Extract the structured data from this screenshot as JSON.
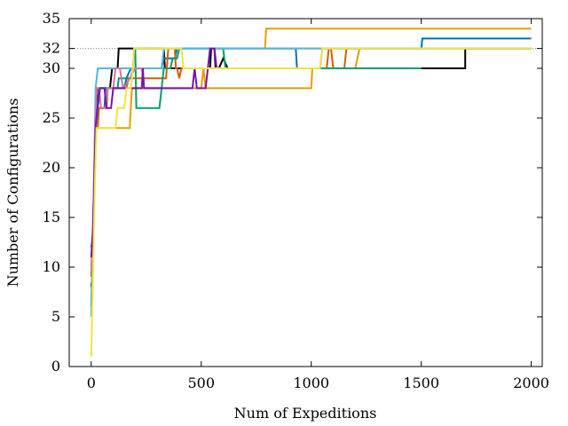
{
  "chart_data": {
    "type": "line",
    "title": "",
    "xlabel": "Num of Expeditions",
    "ylabel": "Number of Configurations",
    "xlim": [
      -100,
      2050
    ],
    "ylim": [
      0,
      35
    ],
    "x_ticks": [
      0,
      500,
      1000,
      1500,
      2000
    ],
    "y_ticks": [
      0,
      5,
      10,
      15,
      20,
      25,
      30,
      32,
      35
    ],
    "reference_lines": [
      {
        "axis": "y",
        "value": 32,
        "style": "dotted",
        "color": "#888888"
      }
    ],
    "grid": false,
    "legend": "none",
    "series": [
      {
        "color": "#000000",
        "points": [
          [
            0,
            8
          ],
          [
            5,
            9
          ],
          [
            8,
            10
          ],
          [
            10,
            14
          ],
          [
            12,
            17
          ],
          [
            15,
            21
          ],
          [
            18,
            23
          ],
          [
            25,
            26
          ],
          [
            28,
            28
          ],
          [
            40,
            28
          ],
          [
            60,
            28
          ],
          [
            85,
            28
          ],
          [
            95,
            30
          ],
          [
            120,
            30
          ],
          [
            125,
            32
          ],
          [
            330,
            32
          ],
          [
            335,
            30
          ],
          [
            380,
            30
          ],
          [
            540,
            30
          ],
          [
            545,
            32
          ],
          [
            560,
            32
          ],
          [
            565,
            30
          ],
          [
            580,
            30
          ],
          [
            600,
            31
          ],
          [
            620,
            30
          ],
          [
            1200,
            30
          ],
          [
            1700,
            30
          ],
          [
            1700,
            32
          ],
          [
            2000,
            32
          ]
        ]
      },
      {
        "color": "#0072B2",
        "points": [
          [
            0,
            12
          ],
          [
            8,
            13
          ],
          [
            12,
            18
          ],
          [
            16,
            22
          ],
          [
            20,
            25
          ],
          [
            30,
            26
          ],
          [
            45,
            26
          ],
          [
            60,
            26
          ],
          [
            65,
            28
          ],
          [
            150,
            28
          ],
          [
            160,
            29
          ],
          [
            180,
            30
          ],
          [
            320,
            30
          ],
          [
            330,
            31
          ],
          [
            380,
            31
          ],
          [
            390,
            32
          ],
          [
            930,
            32
          ],
          [
            935,
            30
          ],
          [
            1040,
            30
          ],
          [
            1050,
            32
          ],
          [
            1500,
            32
          ],
          [
            1505,
            33
          ],
          [
            2000,
            33
          ]
        ]
      },
      {
        "color": "#D55E00",
        "points": [
          [
            0,
            9
          ],
          [
            6,
            12
          ],
          [
            10,
            16
          ],
          [
            14,
            20
          ],
          [
            22,
            24
          ],
          [
            30,
            24
          ],
          [
            35,
            26
          ],
          [
            70,
            26
          ],
          [
            75,
            28
          ],
          [
            160,
            28
          ],
          [
            170,
            29
          ],
          [
            340,
            29
          ],
          [
            350,
            32
          ],
          [
            380,
            32
          ],
          [
            385,
            30
          ],
          [
            390,
            30
          ],
          [
            400,
            29
          ],
          [
            410,
            30
          ],
          [
            450,
            30
          ],
          [
            1060,
            30
          ],
          [
            1070,
            30
          ],
          [
            1080,
            32
          ],
          [
            1090,
            32
          ],
          [
            1100,
            30
          ],
          [
            1150,
            30
          ],
          [
            1160,
            32
          ],
          [
            2000,
            32
          ]
        ]
      },
      {
        "color": "#E69F00",
        "points": [
          [
            0,
            7
          ],
          [
            4,
            9
          ],
          [
            8,
            12
          ],
          [
            12,
            16
          ],
          [
            16,
            20
          ],
          [
            20,
            24
          ],
          [
            60,
            24
          ],
          [
            80,
            24
          ],
          [
            100,
            24
          ],
          [
            175,
            24
          ],
          [
            180,
            26
          ],
          [
            185,
            28
          ],
          [
            500,
            28
          ],
          [
            510,
            30
          ],
          [
            520,
            28
          ],
          [
            1000,
            28
          ],
          [
            1005,
            30
          ],
          [
            1200,
            30
          ],
          [
            1220,
            32
          ],
          [
            790,
            32
          ],
          [
            795,
            34
          ],
          [
            870,
            34
          ],
          [
            880,
            34
          ],
          [
            2000,
            34
          ]
        ]
      },
      {
        "color": "#009E73",
        "points": [
          [
            0,
            6
          ],
          [
            5,
            9
          ],
          [
            10,
            14
          ],
          [
            15,
            19
          ],
          [
            20,
            24
          ],
          [
            30,
            26
          ],
          [
            40,
            28
          ],
          [
            80,
            28
          ],
          [
            120,
            28
          ],
          [
            125,
            29
          ],
          [
            180,
            29
          ],
          [
            190,
            30
          ],
          [
            195,
            32
          ],
          [
            200,
            32
          ],
          [
            205,
            26
          ],
          [
            300,
            26
          ],
          [
            310,
            26
          ],
          [
            320,
            28
          ],
          [
            330,
            30
          ],
          [
            360,
            30
          ],
          [
            370,
            31
          ],
          [
            390,
            31
          ],
          [
            400,
            32
          ],
          [
            600,
            32
          ],
          [
            610,
            30
          ],
          [
            700,
            30
          ],
          [
            1500,
            30
          ]
        ]
      },
      {
        "color": "#56B4E9",
        "points": [
          [
            0,
            5
          ],
          [
            5,
            9
          ],
          [
            10,
            15
          ],
          [
            15,
            22
          ],
          [
            20,
            28
          ],
          [
            30,
            30
          ],
          [
            80,
            30
          ],
          [
            100,
            30
          ],
          [
            150,
            30
          ],
          [
            320,
            30
          ],
          [
            330,
            32
          ],
          [
            950,
            32
          ],
          [
            1500,
            32
          ],
          [
            2000,
            32
          ]
        ]
      },
      {
        "color": "#CC79A7",
        "points": [
          [
            0,
            10
          ],
          [
            6,
            13
          ],
          [
            12,
            18
          ],
          [
            18,
            24
          ],
          [
            25,
            28
          ],
          [
            35,
            28
          ],
          [
            45,
            26
          ],
          [
            65,
            26
          ],
          [
            75,
            28
          ],
          [
            100,
            28
          ],
          [
            110,
            30
          ],
          [
            130,
            30
          ],
          [
            145,
            28
          ],
          [
            150,
            28
          ],
          [
            200,
            30
          ],
          [
            230,
            30
          ],
          [
            240,
            28
          ],
          [
            330,
            28
          ]
        ]
      },
      {
        "color": "#7B0FB5",
        "points": [
          [
            0,
            11
          ],
          [
            8,
            14
          ],
          [
            14,
            19
          ],
          [
            20,
            24
          ],
          [
            28,
            26
          ],
          [
            40,
            28
          ],
          [
            60,
            28
          ],
          [
            70,
            26
          ],
          [
            90,
            26
          ],
          [
            100,
            28
          ],
          [
            230,
            28
          ],
          [
            235,
            30
          ],
          [
            240,
            28
          ],
          [
            460,
            28
          ],
          [
            470,
            30
          ],
          [
            480,
            28
          ],
          [
            520,
            28
          ],
          [
            530,
            30
          ],
          [
            540,
            32
          ],
          [
            550,
            32
          ],
          [
            560,
            32
          ],
          [
            570,
            30
          ],
          [
            600,
            30
          ]
        ]
      },
      {
        "color": "#F0E442",
        "points": [
          [
            0,
            1
          ],
          [
            3,
            4
          ],
          [
            6,
            7
          ],
          [
            9,
            10
          ],
          [
            12,
            14
          ],
          [
            16,
            18
          ],
          [
            20,
            21
          ],
          [
            24,
            24
          ],
          [
            50,
            24
          ],
          [
            80,
            24
          ],
          [
            110,
            24
          ],
          [
            120,
            26
          ],
          [
            150,
            26
          ],
          [
            160,
            28
          ],
          [
            170,
            28
          ],
          [
            180,
            28
          ],
          [
            190,
            30
          ],
          [
            195,
            32
          ],
          [
            200,
            32
          ],
          [
            410,
            32
          ],
          [
            420,
            30
          ],
          [
            1040,
            30
          ],
          [
            1050,
            32
          ],
          [
            2000,
            32
          ]
        ]
      }
    ]
  }
}
